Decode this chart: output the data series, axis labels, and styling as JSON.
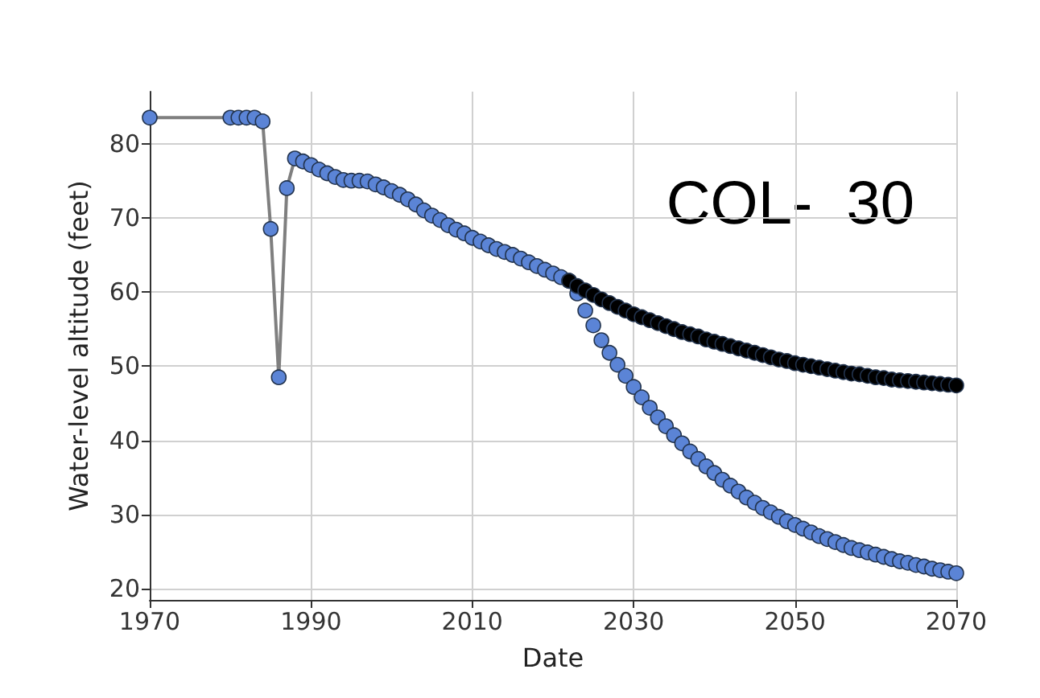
{
  "chart_data": {
    "type": "scatter",
    "xlabel": "Date",
    "ylabel": "Water-level altitude (feet)",
    "annotations": [
      "COL-  30"
    ],
    "xlim": [
      1970,
      2070
    ],
    "xticks": [
      1970,
      1990,
      2010,
      2030,
      2050,
      2070
    ],
    "ylim": [
      18.5,
      87
    ],
    "yticks": [
      20,
      30,
      40,
      50,
      60,
      70,
      80
    ],
    "grid": true,
    "marker": "circle",
    "series": [
      {
        "type": "line",
        "color": "#7f7f7f",
        "marker": "none",
        "x": [
          1970,
          1980,
          1981,
          1982,
          1983,
          1984,
          1985,
          1986,
          1987,
          1988,
          1989,
          1990,
          1991,
          1992,
          1993,
          1994,
          1995,
          1996,
          1997,
          1998,
          1999,
          2000,
          2001,
          2002,
          2003,
          2004,
          2005,
          2006,
          2007,
          2008,
          2009,
          2010,
          2011,
          2012,
          2013,
          2014,
          2015,
          2016,
          2017,
          2018,
          2019,
          2020,
          2021,
          2022
        ],
        "values": [
          83.5,
          83.5,
          83.5,
          83.5,
          83.5,
          83,
          68.5,
          48.5,
          74,
          78,
          77.6,
          77.1,
          76.5,
          76,
          75.5,
          75.1,
          75,
          75,
          74.9,
          74.5,
          74.1,
          73.6,
          73.1,
          72.5,
          71.8,
          71,
          70.3,
          69.7,
          69,
          68.4,
          67.9,
          67.3,
          66.8,
          66.3,
          65.8,
          65.4,
          65,
          64.5,
          64,
          63.5,
          63,
          62.5,
          62,
          61.5
        ]
      },
      {
        "color": "#000000",
        "x": [
          2022,
          2023,
          2024,
          2025,
          2026,
          2027,
          2028,
          2029,
          2030,
          2031,
          2032,
          2033,
          2034,
          2035,
          2036,
          2037,
          2038,
          2039,
          2040,
          2041,
          2042,
          2043,
          2044,
          2045,
          2046,
          2047,
          2048,
          2049,
          2050,
          2051,
          2052,
          2053,
          2054,
          2055,
          2056,
          2057,
          2058,
          2059,
          2060,
          2061,
          2062,
          2063,
          2064,
          2065,
          2066,
          2067,
          2068,
          2069,
          2070
        ],
        "values": [
          61.5,
          60.8,
          60.2,
          59.6,
          59,
          58.5,
          58,
          57.5,
          57,
          56.6,
          56.2,
          55.8,
          55.4,
          55,
          54.6,
          54.3,
          54,
          53.6,
          53.3,
          53,
          52.7,
          52.4,
          52.1,
          51.8,
          51.5,
          51.2,
          50.9,
          50.7,
          50.4,
          50.2,
          50,
          49.8,
          49.6,
          49.4,
          49.2,
          49,
          48.9,
          48.7,
          48.5,
          48.4,
          48.2,
          48.1,
          48,
          47.9,
          47.8,
          47.7,
          47.6,
          47.5,
          47.4
        ]
      },
      {
        "color": "#5b84d6",
        "x": [
          1970,
          1980,
          1981,
          1982,
          1983,
          1984,
          1985,
          1986,
          1987,
          1988,
          1989,
          1990,
          1991,
          1992,
          1993,
          1994,
          1995,
          1996,
          1997,
          1998,
          1999,
          2000,
          2001,
          2002,
          2003,
          2004,
          2005,
          2006,
          2007,
          2008,
          2009,
          2010,
          2011,
          2012,
          2013,
          2014,
          2015,
          2016,
          2017,
          2018,
          2019,
          2020,
          2021,
          2022,
          2023,
          2024,
          2025,
          2026,
          2027,
          2028,
          2029,
          2030,
          2031,
          2032,
          2033,
          2034,
          2035,
          2036,
          2037,
          2038,
          2039,
          2040,
          2041,
          2042,
          2043,
          2044,
          2045,
          2046,
          2047,
          2048,
          2049,
          2050,
          2051,
          2052,
          2053,
          2054,
          2055,
          2056,
          2057,
          2058,
          2059,
          2060,
          2061,
          2062,
          2063,
          2064,
          2065,
          2066,
          2067,
          2068,
          2069,
          2070
        ],
        "values": [
          83.5,
          83.5,
          83.5,
          83.5,
          83.5,
          83,
          68.5,
          48.5,
          74,
          78,
          77.6,
          77.1,
          76.5,
          76,
          75.5,
          75.1,
          75,
          75,
          74.9,
          74.5,
          74.1,
          73.6,
          73.1,
          72.5,
          71.8,
          71,
          70.3,
          69.7,
          69,
          68.4,
          67.9,
          67.3,
          66.8,
          66.3,
          65.8,
          65.4,
          65,
          64.5,
          64,
          63.5,
          63,
          62.5,
          62,
          61.5,
          59.8,
          57.5,
          55.5,
          53.5,
          51.8,
          50.2,
          48.7,
          47.2,
          45.8,
          44.4,
          43.1,
          41.9,
          40.7,
          39.6,
          38.5,
          37.5,
          36.5,
          35.6,
          34.7,
          33.9,
          33.1,
          32.3,
          31.6,
          30.9,
          30.3,
          29.7,
          29.1,
          28.6,
          28.1,
          27.6,
          27.1,
          26.7,
          26.3,
          25.9,
          25.5,
          25.2,
          24.9,
          24.6,
          24.3,
          24,
          23.7,
          23.5,
          23.2,
          23,
          22.7,
          22.5,
          22.3,
          22.1
        ]
      }
    ]
  }
}
